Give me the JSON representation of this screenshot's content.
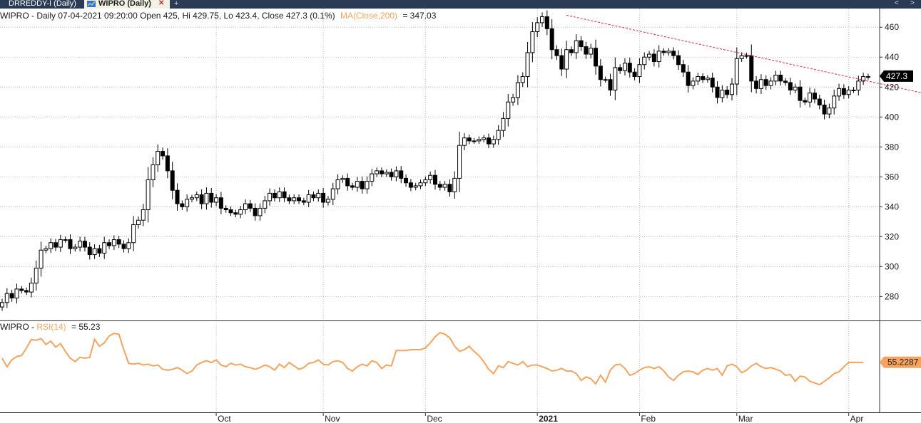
{
  "tabs": [
    {
      "label": "DRREDDY-I (Daily)",
      "active": false
    },
    {
      "label": "WIPRO (Daily)",
      "active": true
    }
  ],
  "tab_icons": {
    "add": "+",
    "nav_left": "<",
    "nav_right": ">"
  },
  "colors": {
    "rsi": "#f4a460",
    "trendline": "#e0284a",
    "up": "#ffffff",
    "down": "#000000",
    "grid": "#bdbdbd"
  },
  "chart_data": [
    {
      "type": "candlestick",
      "header_prefix": "WIPRO - Daily 07-04-2021 09:20:00 Open 425, Hi 429.75, Lo 423.4, Close 427.3 (0.1%)",
      "ma_label": "MA(Close,200)",
      "ma_value": "= 347.03",
      "last_price": "427.3",
      "ylim": [
        264,
        472
      ],
      "yticks": [
        280,
        300,
        320,
        340,
        360,
        380,
        400,
        420,
        440,
        460
      ],
      "xticks": [
        {
          "label": "Oct",
          "date": "2020-10-01"
        },
        {
          "label": "Nov",
          "date": "2020-11-02"
        },
        {
          "label": "Dec",
          "date": "2020-12-01"
        },
        {
          "label": "2021",
          "date": "2021-01-01"
        },
        {
          "label": "Feb",
          "date": "2021-02-01"
        },
        {
          "label": "Mar",
          "date": "2021-03-01"
        },
        {
          "label": "Apr",
          "date": "2021-04-01"
        }
      ],
      "trendline": {
        "from": {
          "date": "2021-01-11",
          "price": 468
        },
        "to": {
          "date": "2021-04-27",
          "price": 414
        }
      },
      "closes": [
        276,
        282,
        279,
        285,
        284,
        283,
        289,
        299,
        311,
        312,
        316,
        313,
        318,
        318,
        312,
        313,
        317,
        313,
        308,
        312,
        309,
        316,
        314,
        318,
        315,
        312,
        316,
        328,
        331,
        338,
        358,
        368,
        377,
        374,
        364,
        351,
        342,
        340,
        345,
        346,
        348,
        342,
        349,
        343,
        346,
        339,
        338,
        336,
        335,
        338,
        342,
        339,
        334,
        339,
        344,
        349,
        346,
        350,
        346,
        344,
        346,
        344,
        343,
        348,
        346,
        349,
        343,
        345,
        352,
        358,
        359,
        354,
        353,
        357,
        352,
        357,
        362,
        364,
        362,
        363,
        360,
        364,
        359,
        356,
        353,
        354,
        356,
        358,
        361,
        355,
        353,
        355,
        350,
        359,
        381,
        386,
        384,
        384,
        385,
        386,
        382,
        385,
        391,
        399,
        410,
        413,
        423,
        427,
        443,
        457,
        463,
        467,
        459,
        445,
        441,
        432,
        445,
        443,
        451,
        447,
        442,
        446,
        434,
        425,
        425,
        418,
        433,
        431,
        436,
        430,
        427,
        435,
        440,
        442,
        437,
        444,
        443,
        444,
        441,
        435,
        430,
        421,
        424,
        427,
        425,
        426,
        420,
        413,
        418,
        415,
        422,
        439,
        441,
        441,
        424,
        419,
        425,
        421,
        424,
        428,
        424,
        423,
        418,
        420,
        411,
        410,
        416,
        412,
        408,
        402,
        406,
        414,
        419,
        415,
        418,
        418,
        424,
        427,
        427
      ],
      "rsi": {
        "label": "RSI(14)",
        "prefix": "WIPRO - ",
        "value": "= 55.23",
        "last_value": "55.2287",
        "ylim": [
          0,
          100
        ],
        "values": [
          60,
          50,
          58,
          62,
          63,
          72,
          82,
          81,
          83,
          76,
          80,
          73,
          77,
          68,
          60,
          56,
          61,
          60,
          61,
          82,
          74,
          78,
          86,
          89,
          88,
          70,
          54,
          53,
          54,
          52,
          53,
          51,
          52,
          47,
          46,
          47,
          49,
          46,
          42,
          45,
          52,
          55,
          57,
          55,
          58,
          52,
          50,
          54,
          52,
          53,
          50,
          49,
          47,
          49,
          52,
          50,
          46,
          53,
          49,
          55,
          51,
          47,
          49,
          54,
          55,
          58,
          53,
          52,
          56,
          57,
          55,
          48,
          45,
          50,
          53,
          51,
          57,
          55,
          48,
          52,
          51,
          69,
          69,
          69,
          70,
          70,
          70,
          72,
          78,
          85,
          90,
          88,
          84,
          74,
          68,
          70,
          74,
          68,
          63,
          56,
          47,
          42,
          51,
          49,
          56,
          54,
          52,
          56,
          50,
          52,
          52,
          50,
          48,
          45,
          46,
          48,
          45,
          45,
          42,
          34,
          38,
          36,
          30,
          40,
          32,
          46,
          52,
          53,
          48,
          40,
          42,
          46,
          49,
          50,
          48,
          50,
          45,
          38,
          34,
          40,
          44,
          45,
          44,
          41,
          46,
          48,
          46,
          48,
          40,
          51,
          53,
          50,
          43,
          46,
          51,
          54,
          50,
          48,
          49,
          47,
          45,
          40,
          41,
          33,
          39,
          38,
          33,
          31,
          29,
          33,
          37,
          42,
          44,
          50,
          55,
          55,
          55,
          55
        ]
      }
    }
  ]
}
